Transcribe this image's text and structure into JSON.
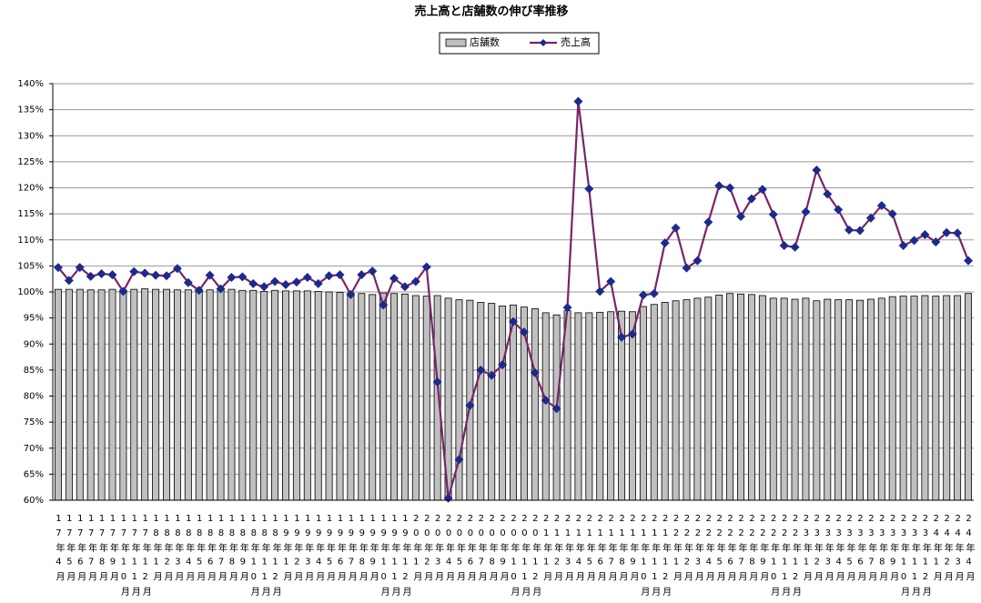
{
  "chart_data": {
    "type": "combo",
    "title": "売上高と店舗数の伸び率推移",
    "categories": [
      "17年4月",
      "17年5月",
      "17年6月",
      "17年7月",
      "17年8月",
      "17年9月",
      "17年10月",
      "17年11月",
      "17年12月",
      "18年1月",
      "18年2月",
      "18年3月",
      "18年4月",
      "18年5月",
      "18年6月",
      "18年7月",
      "18年8月",
      "18年9月",
      "18年10月",
      "18年11月",
      "18年12月",
      "19年1月",
      "19年2月",
      "19年3月",
      "19年4月",
      "19年5月",
      "19年6月",
      "19年7月",
      "19年8月",
      "19年9月",
      "19年10月",
      "19年11月",
      "19年12月",
      "20年1月",
      "20年2月",
      "20年3月",
      "20年4月",
      "20年5月",
      "20年6月",
      "20年7月",
      "20年8月",
      "20年9月",
      "20年10月",
      "20年11月",
      "20年12月",
      "21年1月",
      "21年2月",
      "21年3月",
      "21年4月",
      "21年5月",
      "21年6月",
      "21年7月",
      "21年8月",
      "21年9月",
      "21年10月",
      "21年11月",
      "21年12月",
      "22年1月",
      "22年2月",
      "22年3月",
      "22年4月",
      "22年5月",
      "22年6月",
      "22年7月",
      "22年8月",
      "22年9月",
      "22年10月",
      "22年11月",
      "22年12月",
      "23年1月",
      "23年2月",
      "23年3月",
      "23年4月",
      "23年5月",
      "23年6月",
      "23年7月",
      "23年8月",
      "23年9月",
      "23年10月",
      "23年11月",
      "23年12月",
      "24年1月",
      "24年2月",
      "24年3月",
      "24年4月"
    ],
    "series": [
      {
        "name": "店舗数",
        "type": "bar",
        "color": "#c0c0c0",
        "values": [
          100.5,
          100.5,
          100.5,
          100.4,
          100.4,
          100.5,
          100.4,
          100.5,
          100.6,
          100.5,
          100.5,
          100.4,
          100.4,
          100.4,
          100.4,
          100.5,
          100.5,
          100.3,
          100.3,
          100.1,
          100.3,
          100.2,
          100.2,
          100.2,
          100.1,
          100.0,
          99.9,
          99.8,
          99.7,
          99.5,
          99.8,
          99.7,
          99.6,
          99.3,
          99.2,
          99.3,
          98.8,
          98.5,
          98.4,
          98.0,
          97.8,
          97.3,
          97.5,
          97.1,
          96.8,
          96.0,
          95.6,
          96.4,
          96.0,
          96.0,
          96.1,
          96.2,
          96.3,
          96.2,
          97.2,
          97.6,
          98.0,
          98.3,
          98.5,
          98.8,
          99.0,
          99.4,
          99.7,
          99.6,
          99.5,
          99.3,
          98.8,
          98.8,
          98.6,
          98.8,
          98.3,
          98.6,
          98.5,
          98.5,
          98.4,
          98.6,
          98.8,
          99.1,
          99.2,
          99.2,
          99.3,
          99.2,
          99.3,
          99.3,
          99.7
        ]
      },
      {
        "name": "売上高",
        "type": "line",
        "color": "#7a2468",
        "marker_color": "#1c2a8c",
        "values": [
          104.7,
          102.2,
          104.7,
          103.0,
          103.5,
          103.3,
          100.1,
          103.9,
          103.6,
          103.2,
          103.1,
          104.5,
          101.8,
          100.3,
          103.2,
          100.6,
          102.8,
          102.9,
          101.6,
          101.0,
          102.0,
          101.4,
          101.9,
          102.8,
          101.6,
          103.1,
          103.3,
          99.5,
          103.3,
          104.0,
          97.5,
          102.6,
          101.0,
          102.0,
          104.8,
          82.7,
          60.4,
          67.8,
          78.2,
          85.0,
          84.0,
          86.0,
          94.3,
          92.3,
          84.5,
          79.2,
          77.6,
          97.0,
          136.6,
          119.8,
          100.1,
          102.0,
          91.3,
          91.9,
          99.4,
          99.7,
          109.4,
          112.3,
          104.6,
          106.0,
          113.4,
          120.4,
          120.0,
          114.5,
          117.9,
          119.7,
          114.9,
          108.9,
          108.6,
          115.4,
          123.4,
          118.8,
          115.8,
          111.9,
          111.8,
          114.2,
          116.6,
          115.0,
          108.9,
          109.9,
          111.0,
          109.6,
          111.4,
          111.3,
          106.0
        ]
      }
    ],
    "ylim": [
      60,
      140
    ],
    "yticks": [
      {
        "value": 60,
        "label": "60%"
      },
      {
        "value": 65,
        "label": "65%"
      },
      {
        "value": 70,
        "label": "70%"
      },
      {
        "value": 75,
        "label": "75%"
      },
      {
        "value": 80,
        "label": "80%"
      },
      {
        "value": 85,
        "label": "85%"
      },
      {
        "value": 90,
        "label": "90%"
      },
      {
        "value": 95,
        "label": "95%"
      },
      {
        "value": 100,
        "label": "100%"
      },
      {
        "value": 105,
        "label": "105%"
      },
      {
        "value": 110,
        "label": "110%"
      },
      {
        "value": 115,
        "label": "115%"
      },
      {
        "value": 120,
        "label": "120%"
      },
      {
        "value": 125,
        "label": "125%"
      },
      {
        "value": 130,
        "label": "130%"
      },
      {
        "value": 135,
        "label": "135%"
      },
      {
        "value": 140,
        "label": "140%"
      }
    ],
    "grid": true,
    "legend": "top"
  }
}
